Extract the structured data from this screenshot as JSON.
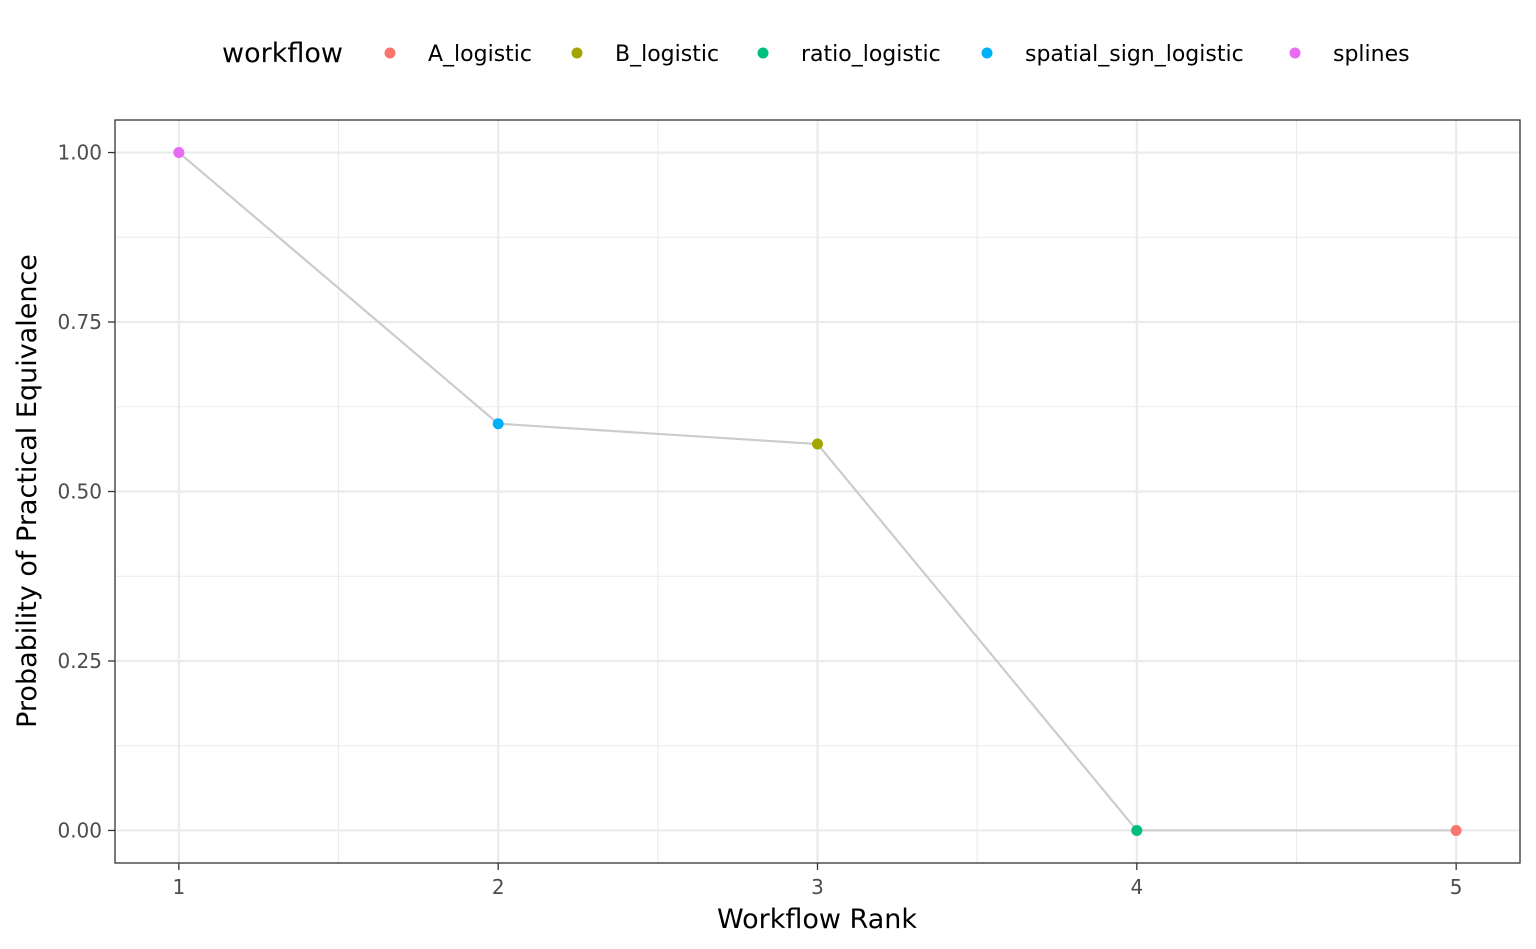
{
  "chart_data": {
    "type": "line",
    "xlabel": "Workflow Rank",
    "ylabel": "Probability of Practical Equivalence",
    "xlim": [
      0.8,
      5.2
    ],
    "ylim": [
      -0.048,
      1.048
    ],
    "x_ticks": [
      1,
      2,
      3,
      4,
      5
    ],
    "x_tick_labels": [
      "1",
      "2",
      "3",
      "4",
      "5"
    ],
    "x_minor": [
      1.5,
      2.5,
      3.5,
      4.5
    ],
    "y_ticks": [
      0,
      0.25,
      0.5,
      0.75,
      1.0
    ],
    "y_tick_labels": [
      "0.00",
      "0.25",
      "0.50",
      "0.75",
      "1.00"
    ],
    "y_minor": [
      0.125,
      0.375,
      0.625,
      0.875
    ],
    "grid": true,
    "legend": {
      "title": "workflow",
      "position": "top"
    },
    "line_color": "#cccccc",
    "series": [
      {
        "name": "A_logistic",
        "color": "#F8766D",
        "x": 5,
        "y": 0.0
      },
      {
        "name": "B_logistic",
        "color": "#A3A500",
        "x": 3,
        "y": 0.57
      },
      {
        "name": "ratio_logistic",
        "color": "#00BF7D",
        "x": 4,
        "y": 0.0
      },
      {
        "name": "spatial_sign_logistic",
        "color": "#00B0F6",
        "x": 2,
        "y": 0.6
      },
      {
        "name": "splines",
        "color": "#E76BF3",
        "x": 1,
        "y": 1.0
      }
    ]
  }
}
